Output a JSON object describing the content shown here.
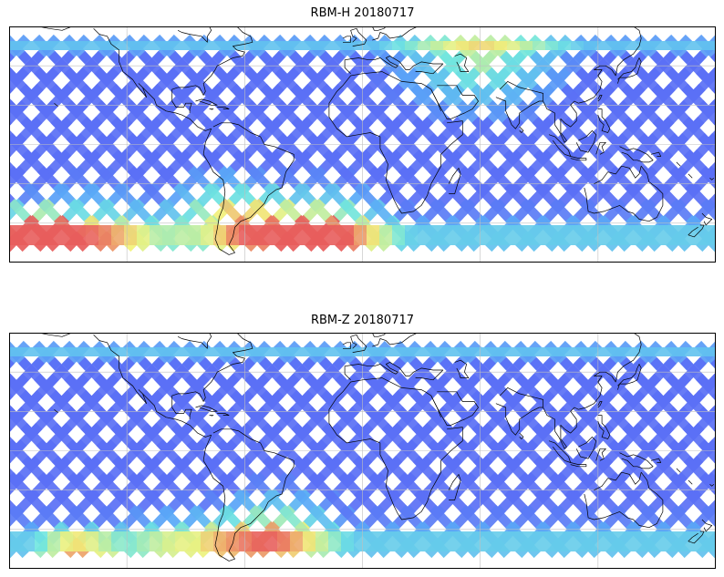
{
  "figure": {
    "panels": [
      {
        "title": "RBM-H 20180717",
        "variable": "RBM-H",
        "date": "20180717"
      },
      {
        "title": "RBM-Z 20180717",
        "variable": "RBM-Z",
        "date": "20180717"
      }
    ]
  },
  "map": {
    "projection": "equirectangular",
    "lon_range": [
      -180,
      180
    ],
    "lat_range": [
      -60,
      60
    ],
    "grid": true,
    "coastlines": true,
    "colormap": "jet",
    "track_pattern": "diagonal satellite swaths (crisscross)",
    "colors": {
      "low": "#5b62f5",
      "mid_low": "#5aaaf8",
      "mid": "#6fe6e0",
      "mid_high": "#f2f27a",
      "high": "#e85c5c",
      "grid": "#bfbfbf",
      "coast": "#000000",
      "frame": "#000000"
    }
  }
}
